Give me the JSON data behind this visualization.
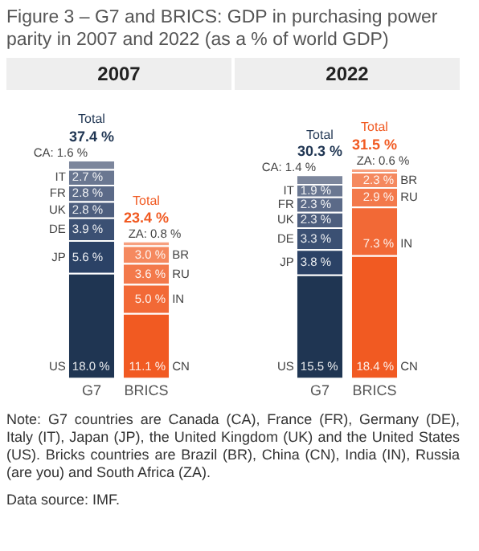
{
  "chart_data": [
    {
      "type": "other",
      "title": "Figure 3 – G7 and BRICS: GDP in purchasing power parity in 2007 and 2022 (as a % of world GDP)"
    },
    {
      "type": "bar",
      "title": "2007",
      "categories": [
        "G7",
        "BRICS"
      ],
      "stacked": true,
      "tick_labels": "x",
      "grid": false,
      "legend": false,
      "series": [
        {
          "name": "US",
          "color": "#1f3552",
          "values": [
            18.0,
            null
          ],
          "value_labels": [
            "18.0 %",
            null
          ]
        },
        {
          "name": "JP",
          "color": "#2b4266",
          "values": [
            5.6,
            null
          ],
          "value_labels": [
            "5.6 %",
            null
          ]
        },
        {
          "name": "DE",
          "color": "#3b5073",
          "values": [
            3.9,
            null
          ],
          "value_labels": [
            "3.9 %",
            null
          ]
        },
        {
          "name": "UK",
          "color": "#4d5e7e",
          "values": [
            2.8,
            null
          ],
          "value_labels": [
            "2.8 %",
            null
          ]
        },
        {
          "name": "FR",
          "color": "#5b6a88",
          "values": [
            2.8,
            null
          ],
          "value_labels": [
            "2.8 %",
            null
          ]
        },
        {
          "name": "IT",
          "color": "#6a7791",
          "values": [
            2.7,
            null
          ],
          "value_labels": [
            "2.7 %",
            null
          ]
        },
        {
          "name": "CA:",
          "color": "#7c869c",
          "values": [
            1.6,
            null
          ],
          "value_labels": [
            "1.6 %",
            null
          ]
        },
        {
          "name": "CN",
          "color": "#f15a22",
          "values": [
            null,
            11.1
          ],
          "value_labels": [
            null,
            "11.1 %"
          ]
        },
        {
          "name": "IN",
          "color": "#f26936",
          "values": [
            null,
            5.0
          ],
          "value_labels": [
            null,
            "5.0 %"
          ]
        },
        {
          "name": "RU",
          "color": "#f3794b",
          "values": [
            null,
            3.6
          ],
          "value_labels": [
            null,
            "3.6 %"
          ]
        },
        {
          "name": "BR",
          "color": "#f5895f",
          "values": [
            null,
            3.0
          ],
          "value_labels": [
            null,
            "3.0 %"
          ]
        },
        {
          "name": "ZA:",
          "color": "#f7a07f",
          "values": [
            null,
            0.8
          ],
          "value_labels": [
            null,
            "0.8 %"
          ]
        }
      ],
      "totals": [
        "37.4 %",
        "23.4 %"
      ],
      "annotations": [
        {
          "text": "Total",
          "x": "G7",
          "y": 37.4
        },
        {
          "text": "Total",
          "x": "BRICS",
          "y": 23.4
        }
      ]
    },
    {
      "type": "bar",
      "title": "2022",
      "categories": [
        "G7",
        "BRICS"
      ],
      "stacked": true,
      "tick_labels": "x",
      "grid": false,
      "legend": false,
      "series": [
        {
          "name": "US",
          "color": "#1f3552",
          "values": [
            15.5,
            null
          ],
          "value_labels": [
            "15.5 %",
            null
          ]
        },
        {
          "name": "JP",
          "color": "#2b4266",
          "values": [
            3.8,
            null
          ],
          "value_labels": [
            "3.8 %",
            null
          ]
        },
        {
          "name": "DE",
          "color": "#3b5073",
          "values": [
            3.3,
            null
          ],
          "value_labels": [
            "3.3 %",
            null
          ]
        },
        {
          "name": "UK",
          "color": "#4d5e7e",
          "values": [
            2.3,
            null
          ],
          "value_labels": [
            "2.3 %",
            null
          ]
        },
        {
          "name": "FR",
          "color": "#5b6a88",
          "values": [
            2.3,
            null
          ],
          "value_labels": [
            "2.3 %",
            null
          ]
        },
        {
          "name": "IT",
          "color": "#6a7791",
          "values": [
            1.9,
            null
          ],
          "value_labels": [
            "1.9 %",
            null
          ]
        },
        {
          "name": "CA:",
          "color": "#7c869c",
          "values": [
            1.4,
            null
          ],
          "value_labels": [
            "1.4 %",
            null
          ]
        },
        {
          "name": "CN",
          "color": "#f15a22",
          "values": [
            null,
            18.4
          ],
          "value_labels": [
            null,
            "18.4 %"
          ]
        },
        {
          "name": "IN",
          "color": "#f26936",
          "values": [
            null,
            7.3
          ],
          "value_labels": [
            null,
            "7.3 %"
          ]
        },
        {
          "name": "RU",
          "color": "#f3794b",
          "values": [
            null,
            2.9
          ],
          "value_labels": [
            null,
            "2.9 %"
          ]
        },
        {
          "name": "BR",
          "color": "#f5895f",
          "values": [
            null,
            2.3
          ],
          "value_labels": [
            null,
            "2.3 %"
          ]
        },
        {
          "name": "ZA:",
          "color": "#f7a07f",
          "values": [
            null,
            0.6
          ],
          "value_labels": [
            null,
            "0.6 %"
          ]
        }
      ],
      "totals": [
        "30.3 %",
        "31.5 %"
      ],
      "annotations": [
        {
          "text": "Total",
          "x": "G7",
          "y": 30.3
        },
        {
          "text": "Total",
          "x": "BRICS",
          "y": 31.5
        }
      ]
    },
    {
      "type": "other",
      "annotations": [
        "Note: G7 countries are Canada (CA), France (FR), Germany (DE), Italy (IT), Japan (JP), the United Kingdom (UK) and the United States (US). Bricks countries are Brazil (BR), China (CN), India (IN), Russia (are you) and South Africa (ZA).",
        "Data source: IMF."
      ]
    }
  ]
}
